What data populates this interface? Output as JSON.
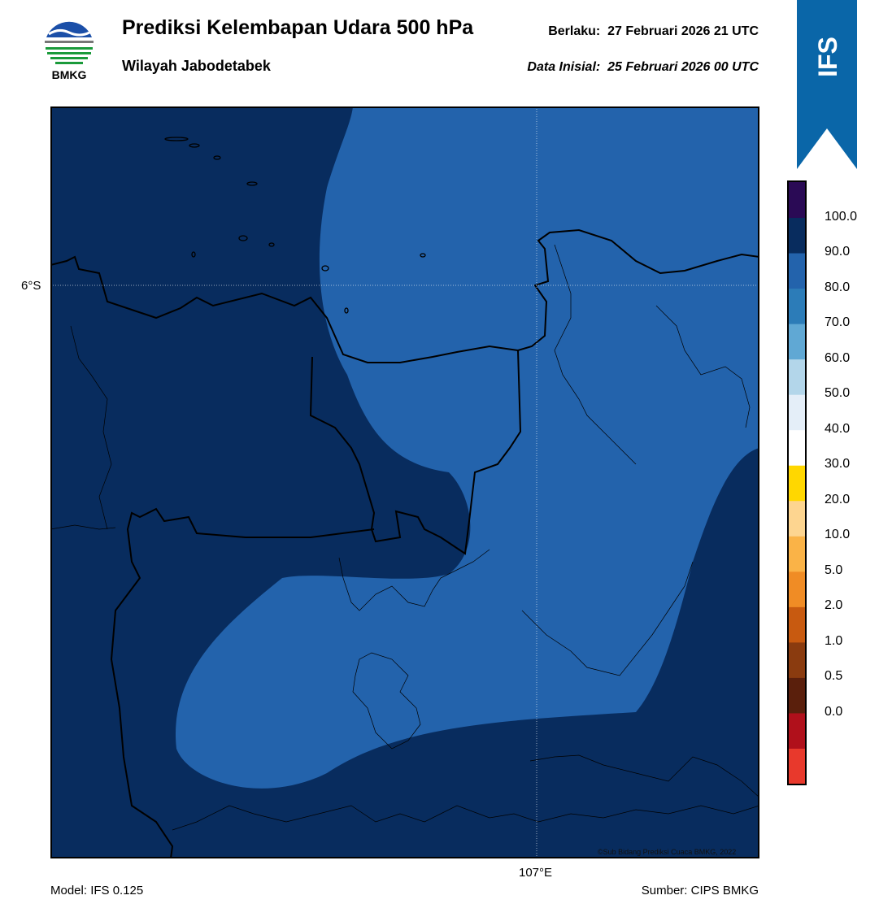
{
  "header": {
    "title": "Prediksi Kelembapan Udara 500 hPa",
    "region": "Wilayah Jabodetabek",
    "valid_label": "Berlaku:",
    "valid_time": "27 Februari 2026 21 UTC",
    "init_label": "Data Inisial:",
    "init_time": "25 Februari 2026 00 UTC"
  },
  "logo": {
    "text": "BMKG",
    "icon": "bmkg-logo"
  },
  "badge": {
    "text": "IFS",
    "color": "#0a66a8"
  },
  "map": {
    "lat_label": "6°S",
    "lon_label": "107°E",
    "copyright": "©Sub Bidang Prediksi Cuaca BMKG, 2022",
    "fill_colors": {
      "high": "#082c5e",
      "mid": "#2363ac"
    }
  },
  "colorbar": {
    "ticks": [
      "100.0",
      "90.0",
      "80.0",
      "70.0",
      "60.0",
      "50.0",
      "40.0",
      "30.0",
      "20.0",
      "10.0",
      "5.0",
      "2.0",
      "1.0",
      "0.5",
      "0.0"
    ],
    "colors": [
      "#e8392c",
      "#b0101b",
      "#5a1f0c",
      "#8a3b0f",
      "#c85a10",
      "#f08c25",
      "#fab347",
      "#fdd590",
      "#ffd700",
      "#ffffff",
      "#e4eef8",
      "#b3d6ea",
      "#60a8d4",
      "#2c7cb8",
      "#2363ac",
      "#082c5e",
      "#2a0a55"
    ]
  },
  "footer": {
    "model": "Model: IFS 0.125",
    "source": "Sumber: CIPS BMKG"
  }
}
